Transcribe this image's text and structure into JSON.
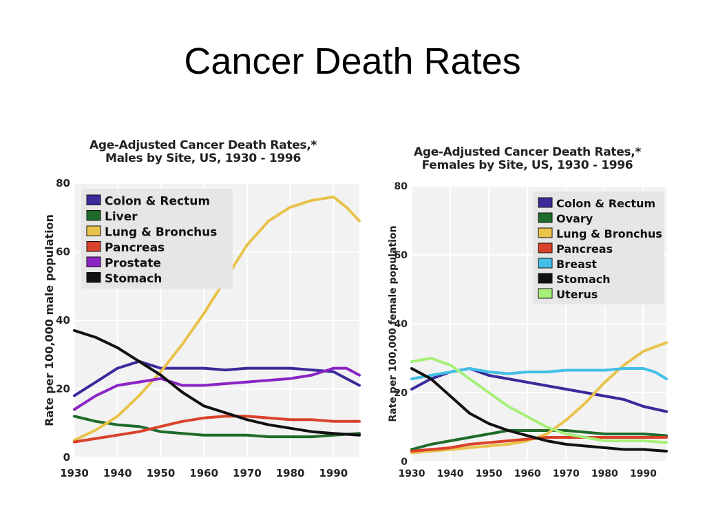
{
  "slide": {
    "title": "Cancer Death Rates"
  },
  "chart_data": [
    {
      "type": "line",
      "title": "Age-Adjusted Cancer Death Rates,*",
      "subtitle": "Males by Site, US, 1930 - 1996",
      "xlabel": "",
      "ylabel": "Rate per 100,000 male population",
      "xlim": [
        1930,
        1996
      ],
      "ylim": [
        0,
        80
      ],
      "xticks": [
        1930,
        1940,
        1950,
        1960,
        1970,
        1980,
        1990
      ],
      "yticks": [
        0,
        20,
        40,
        60,
        80
      ],
      "grid": true,
      "legend_position": "top-left",
      "series": [
        {
          "name": "Colon & Rectum",
          "color": "#3b2a9a",
          "x": [
            1930,
            1935,
            1940,
            1945,
            1950,
            1955,
            1960,
            1965,
            1970,
            1975,
            1980,
            1985,
            1990,
            1993,
            1996
          ],
          "y": [
            18,
            22,
            26,
            28,
            26,
            26,
            26,
            25.5,
            26,
            26,
            26,
            25.5,
            25,
            23,
            21
          ]
        },
        {
          "name": "Liver",
          "color": "#1f6b2a",
          "x": [
            1930,
            1935,
            1940,
            1945,
            1950,
            1955,
            1960,
            1965,
            1970,
            1975,
            1980,
            1985,
            1990,
            1996
          ],
          "y": [
            12,
            10.5,
            9.5,
            9,
            7.5,
            7,
            6.5,
            6.5,
            6.5,
            6,
            6,
            6,
            6.5,
            7
          ]
        },
        {
          "name": "Lung & Bronchus",
          "color": "#e9c24a",
          "x": [
            1930,
            1935,
            1940,
            1945,
            1950,
            1955,
            1960,
            1965,
            1970,
            1975,
            1980,
            1985,
            1990,
            1993,
            1996
          ],
          "y": [
            5,
            8,
            12,
            18,
            25,
            33,
            42,
            52,
            62,
            69,
            73,
            75,
            76,
            73,
            69
          ]
        },
        {
          "name": "Pancreas",
          "color": "#d9422a",
          "x": [
            1930,
            1935,
            1940,
            1945,
            1950,
            1955,
            1960,
            1965,
            1970,
            1975,
            1980,
            1985,
            1990,
            1996
          ],
          "y": [
            4.5,
            5.5,
            6.5,
            7.5,
            9,
            10.5,
            11.5,
            12,
            12,
            11.5,
            11,
            11,
            10.5,
            10.5
          ]
        },
        {
          "name": "Prostate",
          "color": "#8a24c4",
          "x": [
            1930,
            1935,
            1940,
            1945,
            1950,
            1955,
            1960,
            1965,
            1970,
            1975,
            1980,
            1985,
            1990,
            1993,
            1996
          ],
          "y": [
            14,
            18,
            21,
            22,
            23,
            21,
            21,
            21.5,
            22,
            22.5,
            23,
            24,
            26,
            26,
            24
          ]
        },
        {
          "name": "Stomach",
          "color": "#111111",
          "x": [
            1930,
            1935,
            1940,
            1945,
            1950,
            1955,
            1960,
            1965,
            1970,
            1975,
            1980,
            1985,
            1990,
            1996
          ],
          "y": [
            37,
            35,
            32,
            28,
            24,
            19,
            15,
            13,
            11,
            9.5,
            8.5,
            7.5,
            7,
            6.5
          ]
        }
      ]
    },
    {
      "type": "line",
      "title": "Age-Adjusted Cancer Death Rates,*",
      "subtitle": "Females by Site, US, 1930 - 1996",
      "xlabel": "",
      "ylabel": "Rate per 100,000 female population",
      "xlim": [
        1930,
        1996
      ],
      "ylim": [
        0,
        80
      ],
      "xticks": [
        1930,
        1940,
        1950,
        1960,
        1970,
        1980,
        1990
      ],
      "yticks": [
        0,
        20,
        40,
        60,
        80
      ],
      "grid": true,
      "legend_position": "top-right",
      "series": [
        {
          "name": "Colon & Rectum",
          "color": "#3b2a9a",
          "x": [
            1930,
            1935,
            1940,
            1945,
            1950,
            1955,
            1960,
            1965,
            1970,
            1975,
            1980,
            1985,
            1990,
            1996
          ],
          "y": [
            21,
            24,
            26,
            27,
            25,
            24,
            23,
            22,
            21,
            20,
            19,
            18,
            16,
            14.5
          ]
        },
        {
          "name": "Ovary",
          "color": "#1f6b2a",
          "x": [
            1930,
            1935,
            1940,
            1945,
            1950,
            1955,
            1960,
            1965,
            1970,
            1975,
            1980,
            1985,
            1990,
            1996
          ],
          "y": [
            3.5,
            5,
            6,
            7,
            8,
            9,
            9,
            9,
            9,
            8.5,
            8,
            8,
            8,
            7.5
          ]
        },
        {
          "name": "Lung & Bronchus",
          "color": "#e9c24a",
          "x": [
            1930,
            1935,
            1940,
            1945,
            1950,
            1955,
            1960,
            1965,
            1970,
            1975,
            1980,
            1985,
            1990,
            1996
          ],
          "y": [
            2.5,
            3,
            3.5,
            4,
            4.5,
            5,
            6,
            8,
            12,
            17,
            23,
            28,
            32,
            34.5
          ]
        },
        {
          "name": "Pancreas",
          "color": "#d9422a",
          "x": [
            1930,
            1935,
            1940,
            1945,
            1950,
            1955,
            1960,
            1965,
            1970,
            1975,
            1980,
            1985,
            1990,
            1996
          ],
          "y": [
            3,
            3.5,
            4,
            5,
            5.5,
            6,
            6.5,
            7,
            7,
            7,
            7,
            7,
            7,
            7
          ]
        },
        {
          "name": "Breast",
          "color": "#42bfe6",
          "x": [
            1930,
            1935,
            1940,
            1945,
            1950,
            1955,
            1960,
            1965,
            1970,
            1975,
            1980,
            1985,
            1990,
            1993,
            1996
          ],
          "y": [
            24,
            25,
            26,
            27,
            26,
            25.5,
            26,
            26,
            26.5,
            26.5,
            26.5,
            27,
            27,
            26,
            24
          ]
        },
        {
          "name": "Stomach",
          "color": "#111111",
          "x": [
            1930,
            1935,
            1940,
            1945,
            1950,
            1955,
            1960,
            1965,
            1970,
            1975,
            1980,
            1985,
            1990,
            1996
          ],
          "y": [
            27,
            24,
            19,
            14,
            11,
            9,
            7.5,
            6,
            5,
            4.5,
            4,
            3.5,
            3.5,
            3
          ]
        },
        {
          "name": "Uterus",
          "color": "#a6f07a",
          "x": [
            1930,
            1935,
            1940,
            1945,
            1950,
            1955,
            1960,
            1965,
            1970,
            1975,
            1980,
            1985,
            1990,
            1996
          ],
          "y": [
            29,
            30,
            28,
            24,
            20,
            16,
            13,
            10,
            8,
            7,
            6,
            6,
            6,
            5.5
          ]
        }
      ]
    }
  ]
}
